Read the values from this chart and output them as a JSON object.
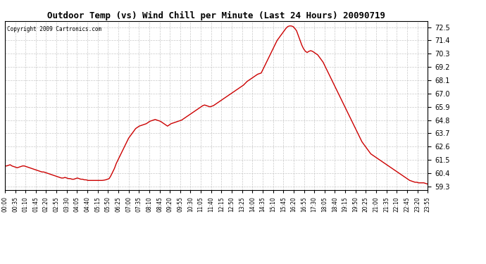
{
  "title": "Outdoor Temp (vs) Wind Chill per Minute (Last 24 Hours) 20090719",
  "copyright": "Copyright 2009 Cartronics.com",
  "background_color": "#ffffff",
  "line_color": "#cc0000",
  "grid_color": "#bbbbbb",
  "ylim": [
    59.0,
    73.0
  ],
  "yticks": [
    59.3,
    60.4,
    61.5,
    62.6,
    63.7,
    64.8,
    65.9,
    67.0,
    68.1,
    69.2,
    70.3,
    71.4,
    72.5
  ],
  "xtick_labels": [
    "00:00",
    "00:35",
    "01:10",
    "01:45",
    "02:20",
    "02:55",
    "03:30",
    "04:05",
    "04:40",
    "05:15",
    "05:50",
    "06:25",
    "07:00",
    "07:35",
    "08:10",
    "08:45",
    "09:20",
    "09:55",
    "10:30",
    "11:05",
    "11:40",
    "12:15",
    "12:50",
    "13:25",
    "14:00",
    "14:35",
    "15:10",
    "15:45",
    "16:20",
    "16:55",
    "17:30",
    "18:05",
    "18:40",
    "19:15",
    "19:50",
    "20:25",
    "21:00",
    "21:35",
    "22:10",
    "22:45",
    "23:20",
    "23:55"
  ],
  "curve_x": [
    0.0,
    0.1,
    0.2,
    0.3,
    0.4,
    0.5,
    0.6,
    0.7,
    0.8,
    0.9,
    1.0,
    1.1,
    1.2,
    1.3,
    1.4,
    1.5,
    1.6,
    1.7,
    1.8,
    1.9,
    2.0,
    2.1,
    2.2,
    2.3,
    2.4,
    2.5,
    2.6,
    2.7,
    2.8,
    2.9,
    3.0,
    3.1,
    3.2,
    3.3,
    3.4,
    3.5,
    3.6,
    3.7,
    3.8,
    3.9,
    4.0,
    4.1,
    4.2,
    4.3,
    4.4,
    4.5,
    4.6,
    4.7,
    4.8,
    4.9,
    5.0,
    5.1,
    5.2,
    5.3,
    5.4,
    5.5,
    5.6,
    5.7,
    5.8,
    5.9,
    6.0,
    6.1,
    6.2,
    6.3,
    6.4,
    6.5,
    6.6,
    6.7,
    6.8,
    6.9,
    7.0,
    7.1,
    7.2,
    7.3,
    7.4,
    7.5,
    7.6,
    7.7,
    7.8,
    7.9,
    8.0,
    8.1,
    8.2,
    8.3,
    8.4,
    8.5,
    8.6,
    8.7,
    8.8,
    8.9,
    9.0,
    9.1,
    9.2,
    9.3,
    9.4,
    9.5,
    9.6,
    9.7,
    9.8,
    9.9,
    10.0,
    10.1,
    10.2,
    10.3,
    10.4,
    10.5,
    10.6,
    10.7,
    10.8,
    10.9,
    11.0,
    11.1,
    11.2,
    11.3,
    11.4,
    11.5,
    11.6,
    11.7,
    11.8,
    11.9,
    12.0,
    12.1,
    12.2,
    12.3,
    12.4,
    12.5,
    12.6,
    12.7,
    12.8,
    12.9,
    13.0,
    13.1,
    13.2,
    13.3,
    13.4,
    13.5,
    13.6,
    13.7,
    13.8,
    13.9,
    14.0,
    14.1,
    14.2,
    14.3,
    14.4,
    14.5,
    14.6,
    14.7,
    14.8,
    14.9,
    15.0,
    15.1,
    15.2,
    15.3,
    15.4,
    15.5,
    15.6,
    15.7,
    15.8,
    15.9,
    16.0,
    16.1,
    16.2,
    16.3,
    16.4,
    16.5,
    16.6,
    16.7,
    16.8,
    16.9,
    17.0,
    17.1,
    17.2,
    17.3,
    17.4,
    17.5,
    17.6,
    17.7,
    17.8,
    17.9,
    18.0,
    18.1,
    18.2,
    18.3,
    18.4,
    18.5,
    18.6,
    18.7,
    18.8,
    18.9,
    19.0,
    19.1,
    19.2,
    19.3,
    19.4,
    19.5,
    19.6,
    19.7,
    19.8,
    19.9,
    20.0,
    20.1,
    20.2,
    20.3,
    20.4,
    20.5,
    20.6,
    20.7,
    20.8,
    20.9,
    21.0,
    21.1,
    21.2,
    21.3,
    21.4,
    21.5,
    21.6,
    21.7,
    21.8,
    21.9,
    22.0,
    22.1,
    22.2,
    22.3,
    22.4,
    22.5,
    22.6,
    22.7,
    22.8,
    22.9,
    23.0,
    23.1,
    23.2,
    23.3,
    23.4,
    23.5,
    23.6,
    23.7,
    23.8,
    23.917
  ],
  "curve_y": [
    61.0,
    61.0,
    61.05,
    61.1,
    61.0,
    60.95,
    60.9,
    60.85,
    60.9,
    60.95,
    61.0,
    61.0,
    60.95,
    60.9,
    60.85,
    60.8,
    60.75,
    60.7,
    60.65,
    60.6,
    60.55,
    60.5,
    60.5,
    60.45,
    60.4,
    60.35,
    60.3,
    60.25,
    60.2,
    60.15,
    60.1,
    60.05,
    60.0,
    60.0,
    60.05,
    60.0,
    59.95,
    59.95,
    59.9,
    59.9,
    59.95,
    60.0,
    59.95,
    59.9,
    59.9,
    59.85,
    59.85,
    59.8,
    59.8,
    59.8,
    59.8,
    59.8,
    59.8,
    59.8,
    59.8,
    59.8,
    59.82,
    59.85,
    59.9,
    59.95,
    60.2,
    60.5,
    60.8,
    61.2,
    61.5,
    61.8,
    62.1,
    62.4,
    62.7,
    63.0,
    63.3,
    63.5,
    63.7,
    63.9,
    64.1,
    64.2,
    64.3,
    64.35,
    64.4,
    64.45,
    64.5,
    64.6,
    64.7,
    64.75,
    64.8,
    64.85,
    64.8,
    64.75,
    64.7,
    64.6,
    64.5,
    64.4,
    64.3,
    64.4,
    64.5,
    64.55,
    64.6,
    64.65,
    64.7,
    64.75,
    64.8,
    64.9,
    65.0,
    65.1,
    65.2,
    65.3,
    65.4,
    65.5,
    65.6,
    65.7,
    65.8,
    65.9,
    66.0,
    66.05,
    66.0,
    65.95,
    65.9,
    65.95,
    66.0,
    66.1,
    66.2,
    66.3,
    66.4,
    66.5,
    66.6,
    66.7,
    66.8,
    66.9,
    67.0,
    67.1,
    67.2,
    67.3,
    67.4,
    67.5,
    67.6,
    67.7,
    67.85,
    68.0,
    68.1,
    68.2,
    68.3,
    68.4,
    68.5,
    68.6,
    68.65,
    68.7,
    69.0,
    69.3,
    69.6,
    69.9,
    70.2,
    70.5,
    70.8,
    71.1,
    71.4,
    71.6,
    71.8,
    72.0,
    72.2,
    72.4,
    72.55,
    72.6,
    72.6,
    72.55,
    72.4,
    72.2,
    71.8,
    71.4,
    71.0,
    70.7,
    70.5,
    70.4,
    70.5,
    70.55,
    70.5,
    70.4,
    70.3,
    70.2,
    70.0,
    69.8,
    69.6,
    69.3,
    69.0,
    68.7,
    68.4,
    68.1,
    67.8,
    67.5,
    67.2,
    66.9,
    66.6,
    66.3,
    66.0,
    65.7,
    65.4,
    65.1,
    64.8,
    64.5,
    64.2,
    63.9,
    63.6,
    63.3,
    63.0,
    62.8,
    62.6,
    62.4,
    62.2,
    62.0,
    61.9,
    61.8,
    61.7,
    61.6,
    61.5,
    61.4,
    61.3,
    61.2,
    61.1,
    61.0,
    60.9,
    60.8,
    60.7,
    60.6,
    60.5,
    60.4,
    60.3,
    60.2,
    60.1,
    60.0,
    59.9,
    59.8,
    59.75,
    59.7,
    59.65,
    59.65,
    59.6,
    59.6,
    59.6,
    59.6,
    59.55,
    59.5
  ]
}
